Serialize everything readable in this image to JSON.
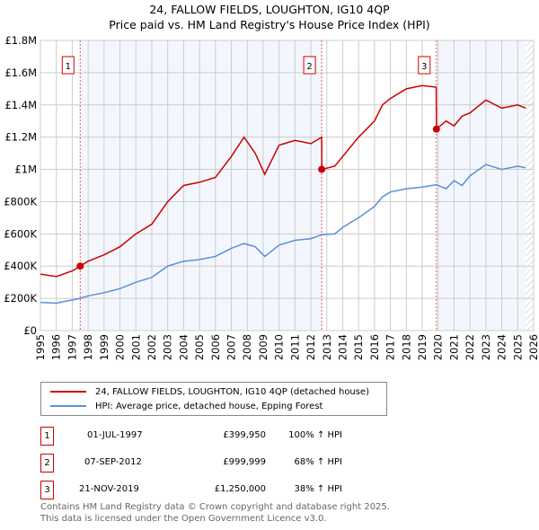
{
  "chart_data": {
    "type": "line",
    "title": "24, FALLOW FIELDS, LOUGHTON, IG10 4QP",
    "subtitle": "Price paid vs. HM Land Registry's House Price Index (HPI)",
    "xlim": [
      1995,
      2026
    ],
    "ylim": [
      0,
      1800000
    ],
    "xticks": [
      "1995",
      "1996",
      "1997",
      "1998",
      "1999",
      "2000",
      "2001",
      "2002",
      "2003",
      "2004",
      "2005",
      "2006",
      "2007",
      "2008",
      "2009",
      "2010",
      "2011",
      "2012",
      "2013",
      "2014",
      "2015",
      "2016",
      "2017",
      "2018",
      "2019",
      "2020",
      "2021",
      "2022",
      "2023",
      "2024",
      "2025",
      "2026"
    ],
    "yticks": [
      {
        "v": 0,
        "label": "£0"
      },
      {
        "v": 200000,
        "label": "£200K"
      },
      {
        "v": 400000,
        "label": "£400K"
      },
      {
        "v": 600000,
        "label": "£600K"
      },
      {
        "v": 800000,
        "label": "£800K"
      },
      {
        "v": 1000000,
        "label": "£1M"
      },
      {
        "v": 1200000,
        "label": "£1.2M"
      },
      {
        "v": 1400000,
        "label": "£1.4M"
      },
      {
        "v": 1600000,
        "label": "£1.6M"
      },
      {
        "v": 1800000,
        "label": "£1.8M"
      }
    ],
    "grid": true,
    "series": [
      {
        "name": "24, FALLOW FIELDS, LOUGHTON, IG10 4QP (detached house)",
        "color": "#cc0000",
        "x": [
          1995,
          1996,
          1997,
          1997.5,
          1998,
          1999,
          2000,
          2001,
          2002,
          2003,
          2004,
          2005,
          2006,
          2007,
          2007.8,
          2008.5,
          2009.1,
          2010,
          2011,
          2012,
          2012.68,
          2012.69,
          2013.5,
          2014,
          2015,
          2016,
          2016.5,
          2017,
          2018,
          2019,
          2019.88,
          2019.89,
          2020.5,
          2021,
          2021.5,
          2022,
          2023,
          2024,
          2025,
          2025.5
        ],
        "y": [
          350000,
          335000,
          370000,
          399950,
          430000,
          470000,
          520000,
          600000,
          660000,
          800000,
          900000,
          920000,
          950000,
          1080000,
          1200000,
          1100000,
          970000,
          1150000,
          1180000,
          1160000,
          1200000,
          1000000,
          1020000,
          1080000,
          1200000,
          1300000,
          1400000,
          1440000,
          1500000,
          1520000,
          1510000,
          1250000,
          1300000,
          1270000,
          1330000,
          1350000,
          1430000,
          1380000,
          1400000,
          1380000
        ]
      },
      {
        "name": "HPI: Average price, detached house, Epping Forest",
        "color": "#5b8fd6",
        "x": [
          1995,
          1996,
          1997,
          1997.5,
          1998,
          1999,
          2000,
          2001,
          2002,
          2003,
          2004,
          2005,
          2006,
          2007,
          2007.8,
          2008.5,
          2009.1,
          2010,
          2011,
          2012,
          2012.68,
          2013.5,
          2014,
          2015,
          2016,
          2016.5,
          2017,
          2018,
          2019,
          2019.89,
          2020.5,
          2021,
          2021.5,
          2022,
          2023,
          2024,
          2025,
          2025.5
        ],
        "y": [
          175000,
          170000,
          190000,
          200000,
          215000,
          235000,
          260000,
          300000,
          330000,
          400000,
          430000,
          440000,
          460000,
          510000,
          540000,
          520000,
          460000,
          530000,
          560000,
          570000,
          595000,
          600000,
          640000,
          700000,
          770000,
          830000,
          860000,
          880000,
          890000,
          905000,
          880000,
          930000,
          900000,
          960000,
          1030000,
          1000000,
          1020000,
          1010000
        ]
      }
    ],
    "sales": [
      {
        "n": "1",
        "x": 1997.5,
        "y": 399950,
        "date": "01-JUL-1997",
        "price": "£399,950",
        "hpi": "100% ↑ HPI"
      },
      {
        "n": "2",
        "x": 2012.68,
        "y": 999999,
        "date": "07-SEP-2012",
        "price": "£999,999",
        "hpi": "68% ↑ HPI"
      },
      {
        "n": "3",
        "x": 2019.89,
        "y": 1250000,
        "date": "21-NOV-2019",
        "price": "£1,250,000",
        "hpi": "38% ↑ HPI"
      }
    ],
    "forecast_start": 2025.5,
    "legend_position": "below"
  },
  "footer": [
    "Contains HM Land Registry data © Crown copyright and database right 2025.",
    "This data is licensed under the Open Government Licence v3.0."
  ]
}
